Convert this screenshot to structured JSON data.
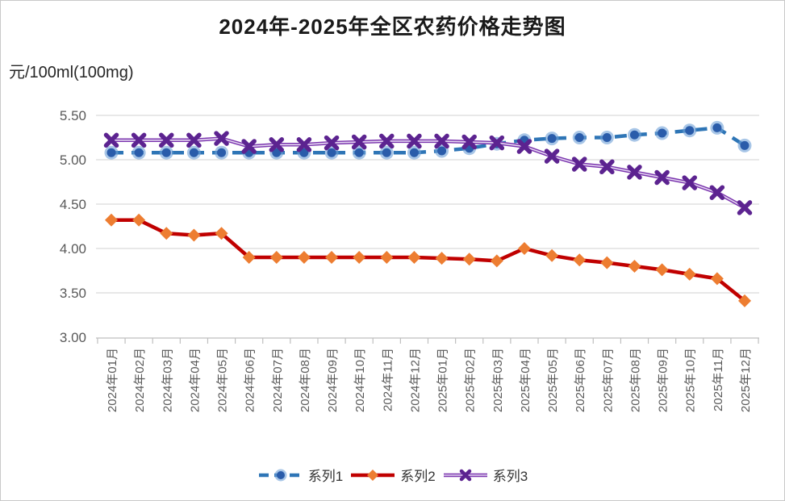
{
  "title": "2024年-2025年全区农药价格走势图",
  "unit_label": "元/100ml(100mg)",
  "legend": {
    "items": [
      "系列1",
      "系列2",
      "系列3"
    ]
  },
  "chart_data": {
    "type": "line",
    "title": "2024年-2025年全区农药价格走势图",
    "ylabel": "元/100ml(100mg)",
    "xlabel": "",
    "ylim": [
      3.0,
      5.5
    ],
    "grid": true,
    "legend_position": "bottom",
    "yticks": [
      {
        "label": "5.50",
        "value": 5.5
      },
      {
        "label": "5.00",
        "value": 5.0
      },
      {
        "label": "4.50",
        "value": 4.5
      },
      {
        "label": "4.00",
        "value": 4.0
      },
      {
        "label": "3.50",
        "value": 3.5
      },
      {
        "label": "3.00",
        "value": 3.0
      }
    ],
    "categories": [
      "2024年01月",
      "2024年02月",
      "2024年03月",
      "2024年04月",
      "2024年05月",
      "2024年06月",
      "2024年07月",
      "2024年08月",
      "2024年09月",
      "2024年10月",
      "2024年11月",
      "2024年12月",
      "2025年01月",
      "2025年02月",
      "2025年03月",
      "2025年04月",
      "2025年05月",
      "2025年06月",
      "2025年07月",
      "2025年08月",
      "2025年09月",
      "2025年10月",
      "2025年11月",
      "2025年12月"
    ],
    "series": [
      {
        "name": "系列1",
        "marker": "circle",
        "dashed": true,
        "line_color": "#2E75B6",
        "marker_color": "#2A5CAA",
        "halo_color": "rgba(110,160,215,0.6)",
        "values": [
          5.08,
          5.08,
          5.08,
          5.08,
          5.08,
          5.08,
          5.08,
          5.08,
          5.08,
          5.08,
          5.08,
          5.08,
          5.1,
          5.13,
          5.18,
          5.22,
          5.24,
          5.25,
          5.25,
          5.28,
          5.3,
          5.33,
          5.36,
          5.16
        ]
      },
      {
        "name": "系列2",
        "marker": "diamond",
        "dashed": false,
        "line_color": "#C00000",
        "marker_color": "#ED7D31",
        "values": [
          4.32,
          4.32,
          4.17,
          4.15,
          4.17,
          3.9,
          3.9,
          3.9,
          3.9,
          3.9,
          3.9,
          3.9,
          3.89,
          3.88,
          3.86,
          4.0,
          3.92,
          3.87,
          3.84,
          3.8,
          3.76,
          3.71,
          3.66,
          3.41
        ]
      },
      {
        "name": "系列3",
        "marker": "x",
        "dashed": false,
        "line_color": "#7B35AE",
        "line_highlight": "#E6D9F2",
        "marker_color": "#5C2390",
        "values": [
          5.22,
          5.22,
          5.22,
          5.22,
          5.24,
          5.15,
          5.17,
          5.17,
          5.19,
          5.2,
          5.21,
          5.21,
          5.21,
          5.2,
          5.19,
          5.15,
          5.04,
          4.95,
          4.92,
          4.86,
          4.8,
          4.74,
          4.63,
          4.46
        ]
      }
    ]
  }
}
